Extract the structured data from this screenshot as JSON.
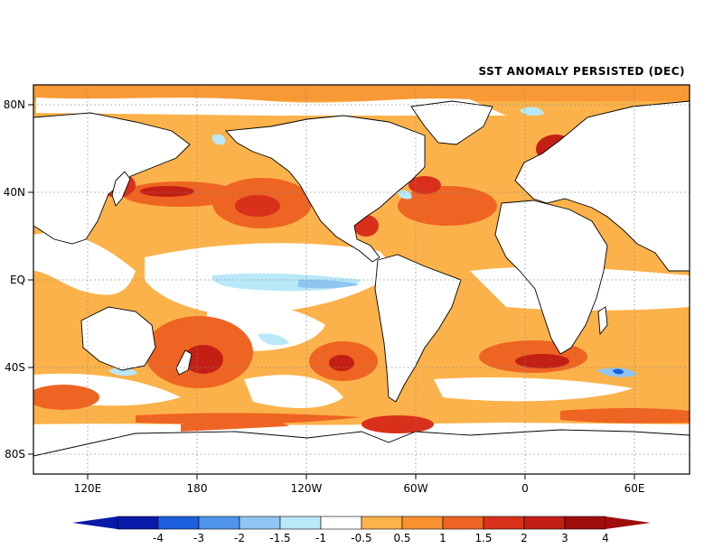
{
  "title": "SST ANOMALY PERSISTED (DEC)",
  "map": {
    "lat_labels": [
      "80N",
      "40N",
      "EQ",
      "40S",
      "80S"
    ],
    "lon_labels": [
      "120E",
      "180",
      "120W",
      "60W",
      "0",
      "60E"
    ]
  },
  "colorbar": {
    "labels": [
      "-4",
      "-3",
      "-2",
      "-1.5",
      "-1",
      "-0.5",
      "0.5",
      "1",
      "1.5",
      "2",
      "3",
      "4"
    ],
    "colors": [
      "#0a1aa8",
      "#1b5fe0",
      "#4f95ec",
      "#8ec5f2",
      "#b9e8f8",
      "#ffffff",
      "#fbb24a",
      "#f7922f",
      "#ee6422",
      "#d8301a",
      "#c41f14",
      "#a00d0d"
    ],
    "low_end_color": "#0a1aa8",
    "high_end_color": "#a00d0d"
  }
}
